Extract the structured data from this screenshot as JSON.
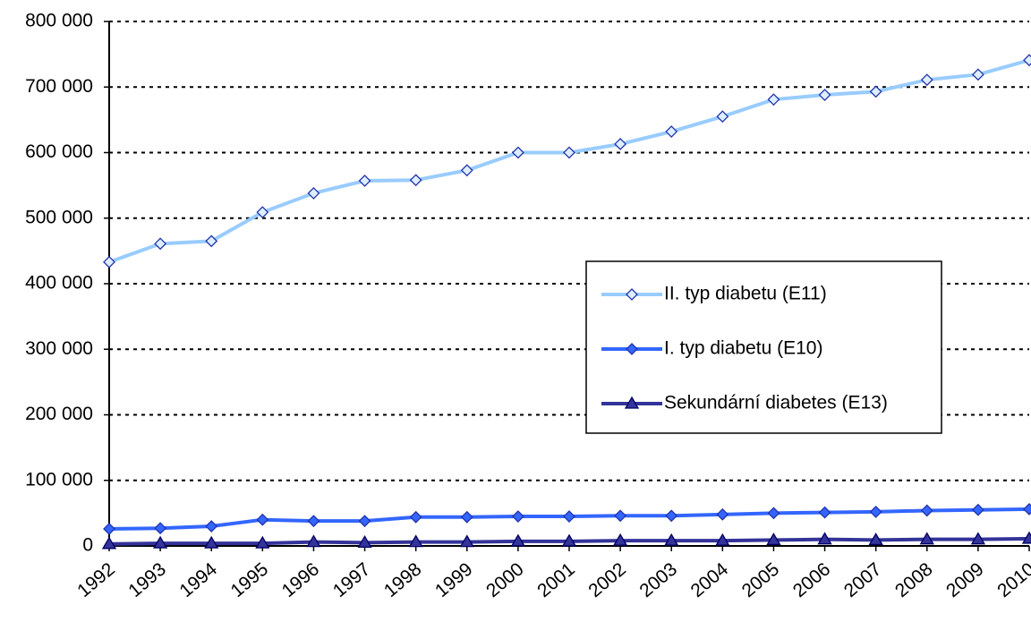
{
  "chart_data": {
    "type": "line",
    "x": [
      "1992",
      "1993",
      "1994",
      "1995",
      "1996",
      "1997",
      "1998",
      "1999",
      "2000",
      "2001",
      "2002",
      "2003",
      "2004",
      "2005",
      "2006",
      "2007",
      "2008",
      "2009",
      "2010"
    ],
    "series": [
      {
        "name": "II. typ diabetu (E11)",
        "color": "#99ccff",
        "marker": "diamond",
        "values": [
          433000,
          461000,
          465000,
          509000,
          538000,
          557000,
          558000,
          573000,
          600000,
          600000,
          613000,
          632000,
          655000,
          681000,
          688000,
          693000,
          711000,
          719000,
          741000
        ]
      },
      {
        "name": "I. typ diabetu (E10)",
        "color": "#3366ff",
        "marker": "diamond",
        "values": [
          26000,
          27000,
          30000,
          40000,
          38000,
          38000,
          44000,
          44000,
          45000,
          45000,
          46000,
          46000,
          48000,
          50000,
          51000,
          52000,
          54000,
          55000,
          56000
        ]
      },
      {
        "name": "Sekundární diabetes (E13)",
        "color": "#333399",
        "marker": "triangle",
        "values": [
          3000,
          4000,
          4000,
          4000,
          6000,
          5000,
          6000,
          6000,
          7000,
          7000,
          8000,
          8000,
          8000,
          9000,
          10000,
          9000,
          10000,
          10000,
          11000
        ]
      }
    ],
    "ylim": [
      0,
      800000
    ],
    "yticks": [
      0,
      {
        "value": 100000,
        "label": "100 000"
      },
      {
        "value": 200000,
        "label": "200 000"
      },
      {
        "value": 300000,
        "label": "300 000"
      },
      {
        "value": 400000,
        "label": "400 000"
      },
      {
        "value": 500000,
        "label": "500 000"
      },
      {
        "value": 600000,
        "label": "600 000"
      },
      {
        "value": 700000,
        "label": "700 000"
      },
      {
        "value": 800000,
        "label": "800 000"
      }
    ],
    "grid": true,
    "legend": "right"
  }
}
